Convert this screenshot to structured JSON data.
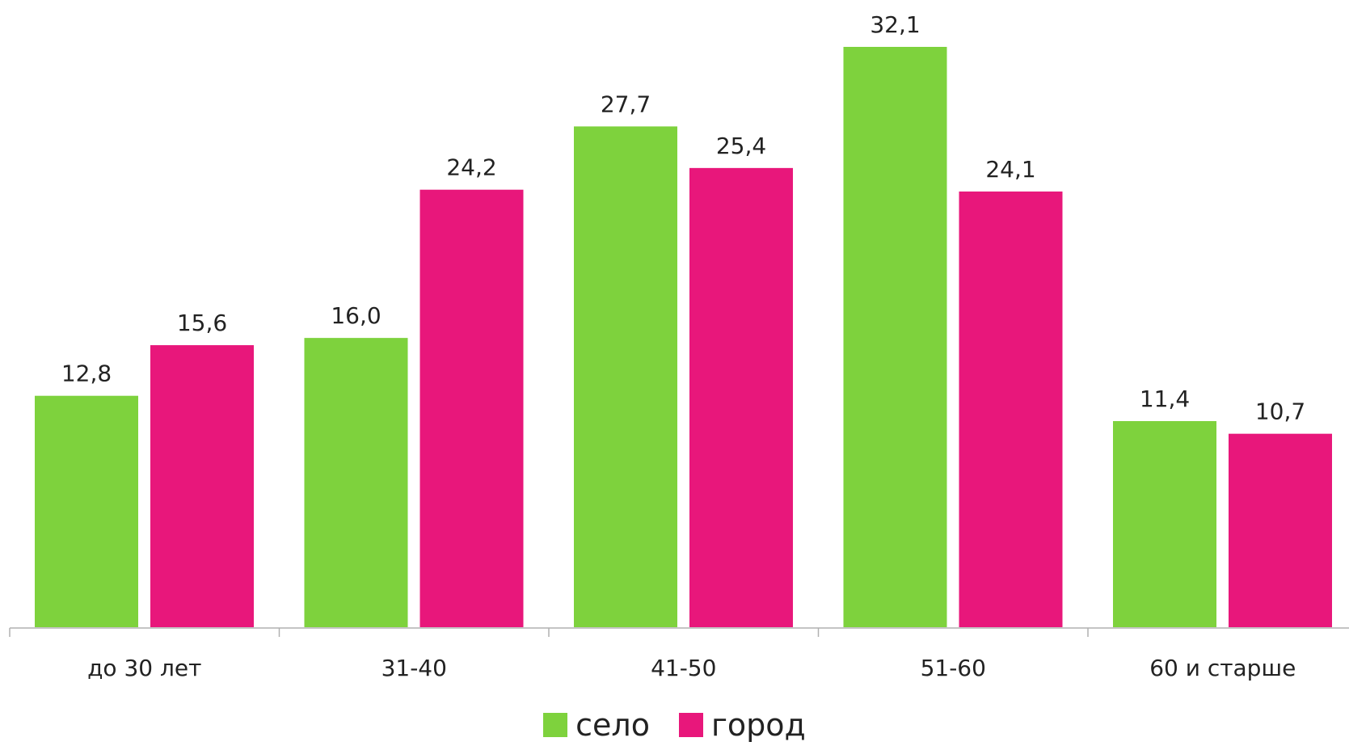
{
  "chart_data": {
    "type": "bar",
    "categories": [
      "до 30 лет",
      "31-40",
      "41-50",
      "51-60",
      "60 и старше"
    ],
    "series": [
      {
        "name": "село",
        "color": "#7ed23d",
        "values": [
          12.8,
          16.0,
          27.7,
          32.1,
          11.4
        ],
        "labels": [
          "12,8",
          "16,0",
          "27,7",
          "32,1",
          "11,4"
        ]
      },
      {
        "name": "город",
        "color": "#e8177b",
        "values": [
          15.6,
          24.2,
          25.4,
          24.1,
          10.7
        ],
        "labels": [
          "15,6",
          "24,2",
          "25,4",
          "24,1",
          "10,7"
        ]
      }
    ],
    "ylim": [
      0,
      35
    ],
    "grid": false,
    "legend_position": "bottom"
  }
}
